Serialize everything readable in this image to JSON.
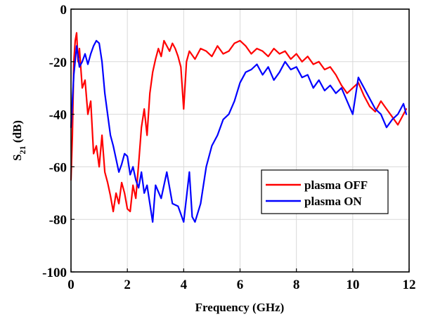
{
  "chart_data": {
    "type": "line",
    "xlabel": "Frequency (GHz)",
    "ylabel": {
      "main": "S",
      "sub": "21",
      "unit": " (dB)"
    },
    "xlim": [
      0,
      12
    ],
    "ylim": [
      -100,
      0
    ],
    "xticks": [
      0,
      2,
      4,
      6,
      8,
      10,
      12
    ],
    "yticks": [
      0,
      -20,
      -40,
      -60,
      -80,
      -100
    ],
    "grid": true,
    "legend_position": "center-right",
    "series": [
      {
        "name": "plasma OFF",
        "color": "#ff0000",
        "x": [
          0.0,
          0.05,
          0.1,
          0.15,
          0.2,
          0.25,
          0.3,
          0.4,
          0.5,
          0.6,
          0.7,
          0.8,
          0.9,
          1.0,
          1.1,
          1.2,
          1.3,
          1.4,
          1.5,
          1.6,
          1.7,
          1.8,
          1.9,
          2.0,
          2.1,
          2.2,
          2.3,
          2.4,
          2.5,
          2.6,
          2.7,
          2.8,
          2.9,
          3.0,
          3.1,
          3.2,
          3.3,
          3.4,
          3.5,
          3.6,
          3.7,
          3.8,
          3.9,
          4.0,
          4.1,
          4.2,
          4.4,
          4.6,
          4.8,
          5.0,
          5.2,
          5.4,
          5.6,
          5.8,
          6.0,
          6.2,
          6.4,
          6.6,
          6.8,
          7.0,
          7.2,
          7.4,
          7.6,
          7.8,
          8.0,
          8.2,
          8.4,
          8.6,
          8.8,
          9.0,
          9.2,
          9.4,
          9.6,
          9.8,
          10.0,
          10.2,
          10.4,
          10.6,
          10.8,
          11.0,
          11.2,
          11.4,
          11.6,
          11.8,
          11.9
        ],
        "values": [
          -65,
          -48,
          -20,
          -12,
          -9,
          -20,
          -15,
          -30,
          -27,
          -40,
          -35,
          -55,
          -52,
          -60,
          -48,
          -62,
          -66,
          -71,
          -77,
          -70,
          -74,
          -66,
          -70,
          -76,
          -77,
          -67,
          -72,
          -59,
          -45,
          -38,
          -48,
          -32,
          -24,
          -19,
          -15,
          -18,
          -12,
          -14,
          -16,
          -13,
          -15,
          -18,
          -22,
          -38,
          -20,
          -16,
          -19,
          -15,
          -16,
          -18,
          -14,
          -17,
          -16,
          -13,
          -12,
          -14,
          -17,
          -15,
          -16,
          -18,
          -15,
          -17,
          -16,
          -19,
          -17,
          -20,
          -18,
          -21,
          -20,
          -23,
          -22,
          -25,
          -29,
          -32,
          -30,
          -28,
          -33,
          -37,
          -39,
          -35,
          -38,
          -41,
          -44,
          -40,
          -38
        ]
      },
      {
        "name": "plasma ON",
        "color": "#0000ff",
        "x": [
          0.0,
          0.05,
          0.1,
          0.2,
          0.3,
          0.4,
          0.5,
          0.6,
          0.7,
          0.8,
          0.9,
          1.0,
          1.1,
          1.2,
          1.3,
          1.4,
          1.5,
          1.6,
          1.7,
          1.8,
          1.9,
          2.0,
          2.1,
          2.2,
          2.3,
          2.4,
          2.5,
          2.6,
          2.7,
          2.8,
          2.9,
          3.0,
          3.2,
          3.4,
          3.6,
          3.8,
          4.0,
          4.2,
          4.3,
          4.4,
          4.6,
          4.8,
          5.0,
          5.2,
          5.4,
          5.6,
          5.8,
          6.0,
          6.2,
          6.4,
          6.6,
          6.8,
          7.0,
          7.2,
          7.4,
          7.6,
          7.8,
          8.0,
          8.2,
          8.4,
          8.6,
          8.8,
          9.0,
          9.2,
          9.4,
          9.6,
          9.8,
          10.0,
          10.2,
          10.4,
          10.6,
          10.8,
          11.0,
          11.2,
          11.4,
          11.6,
          11.8,
          11.9
        ],
        "values": [
          -45,
          -35,
          -25,
          -14,
          -22,
          -20,
          -17,
          -21,
          -17,
          -14,
          -12,
          -13,
          -20,
          -32,
          -40,
          -48,
          -52,
          -57,
          -62,
          -59,
          -55,
          -56,
          -63,
          -60,
          -65,
          -68,
          -62,
          -70,
          -67,
          -74,
          -81,
          -67,
          -72,
          -62,
          -74,
          -75,
          -81,
          -62,
          -79,
          -81,
          -74,
          -60,
          -52,
          -48,
          -42,
          -40,
          -35,
          -28,
          -24,
          -23,
          -21,
          -25,
          -22,
          -27,
          -24,
          -20,
          -23,
          -22,
          -26,
          -25,
          -30,
          -27,
          -31,
          -29,
          -32,
          -30,
          -35,
          -40,
          -26,
          -30,
          -34,
          -38,
          -40,
          -45,
          -42,
          -40,
          -36,
          -40
        ]
      }
    ]
  }
}
